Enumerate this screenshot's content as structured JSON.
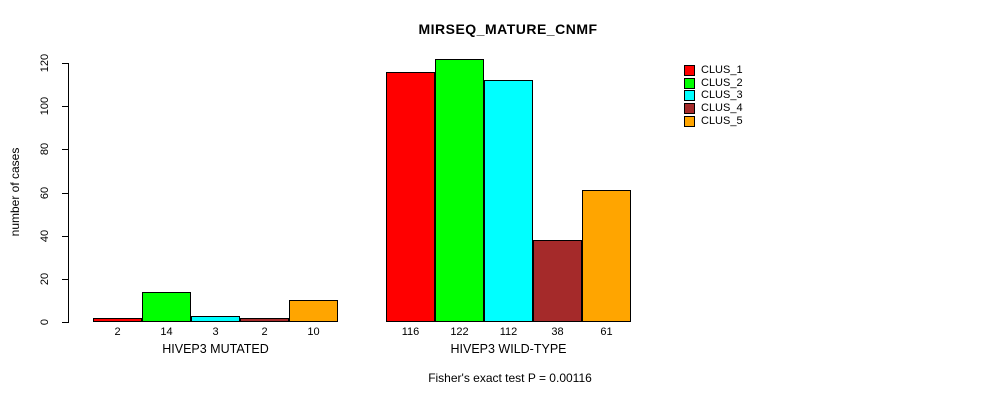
{
  "title": "MIRSEQ_MATURE_CNMF",
  "ylabel": "number of cases",
  "caption": "Fisher's exact test P = 0.00116",
  "chart_data": {
    "type": "bar",
    "title": "MIRSEQ_MATURE_CNMF",
    "ylabel": "number of cases",
    "xlabel": "",
    "ylim": [
      0,
      120
    ],
    "yticks": [
      0,
      20,
      40,
      60,
      80,
      100,
      120
    ],
    "grid": false,
    "legend_position": "right",
    "series": [
      "CLUS_1",
      "CLUS_2",
      "CLUS_3",
      "CLUS_4",
      "CLUS_5"
    ],
    "colors": [
      "#FF0000",
      "#00FF00",
      "#00FFFF",
      "#A52A2A",
      "#FFA500"
    ],
    "groups": [
      {
        "label": "HIVEP3 MUTATED",
        "values": [
          2,
          14,
          3,
          2,
          10
        ]
      },
      {
        "label": "HIVEP3 WILD-TYPE",
        "values": [
          116,
          122,
          112,
          38,
          61
        ]
      }
    ],
    "annotation": "Fisher's exact test P = 0.00116"
  },
  "legend": {
    "items": [
      {
        "label": "CLUS_1",
        "color": "#FF0000"
      },
      {
        "label": "CLUS_2",
        "color": "#00FF00"
      },
      {
        "label": "CLUS_3",
        "color": "#00FFFF"
      },
      {
        "label": "CLUS_4",
        "color": "#A52A2A"
      },
      {
        "label": "CLUS_5",
        "color": "#FFA500"
      }
    ]
  }
}
